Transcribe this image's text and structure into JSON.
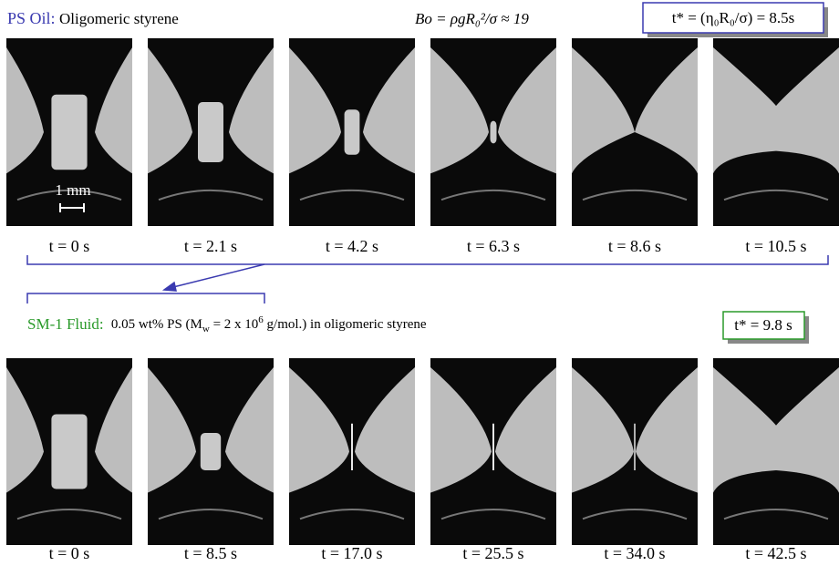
{
  "top": {
    "label": "PS Oil:",
    "description": "Oligomeric styrene",
    "bond_number": "Bo = ρgR₀²/σ ≈ 19",
    "time_scale": "t* = (η₀R₀/σ) = 8.5s",
    "scale_bar": "1 mm",
    "frames": [
      "t = 0 s",
      "t = 2.1 s",
      "t = 4.2 s",
      "t = 6.3 s",
      "t = 8.6 s",
      "t = 10.5 s"
    ]
  },
  "bottom": {
    "label": "SM-1 Fluid:",
    "description": [
      "0.05 wt% PS (M",
      "w",
      " = 2 x 10",
      "6",
      " g/mol.) in oligomeric styrene"
    ],
    "time_scale": "t* = 9.8 s",
    "frames": [
      "t = 0 s",
      "t = 8.5 s",
      "t = 17.0 s",
      "t = 25.5 s",
      "t = 34.0 s",
      "t = 42.5 s"
    ]
  }
}
